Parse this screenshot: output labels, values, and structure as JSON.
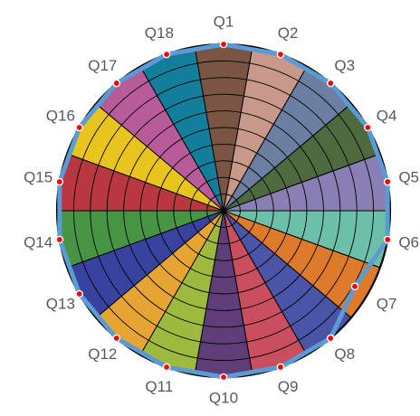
{
  "chart_data": {
    "type": "radar",
    "title": "",
    "categories": [
      "Q1",
      "Q2",
      "Q3",
      "Q4",
      "Q5",
      "Q6",
      "Q7",
      "Q8",
      "Q9",
      "Q10",
      "Q11",
      "Q12",
      "Q13",
      "Q14",
      "Q15",
      "Q16",
      "Q17",
      "Q18"
    ],
    "ring_levels": 10,
    "rmax": 10,
    "segment_colors": [
      "#7b5543",
      "#c8988a",
      "#6a7fa2",
      "#506a3f",
      "#8a7fb5",
      "#6cbfa8",
      "#de7a2b",
      "#4b55a8",
      "#c94f5e",
      "#5e3d79",
      "#9eba3e",
      "#e6a532",
      "#3843a0",
      "#479544",
      "#b9373f",
      "#e8c41f",
      "#b75b9a",
      "#137e9c"
    ],
    "series": [
      {
        "values": [
          10,
          10,
          10,
          10,
          10,
          10,
          9.1,
          10,
          10,
          10,
          10,
          10,
          10,
          10,
          10,
          10,
          10,
          10
        ],
        "line_color": "#5b9bd5",
        "marker_color": "#ff0000"
      }
    ],
    "outer_ring_color": "#000000",
    "grid_color": "#000000"
  }
}
